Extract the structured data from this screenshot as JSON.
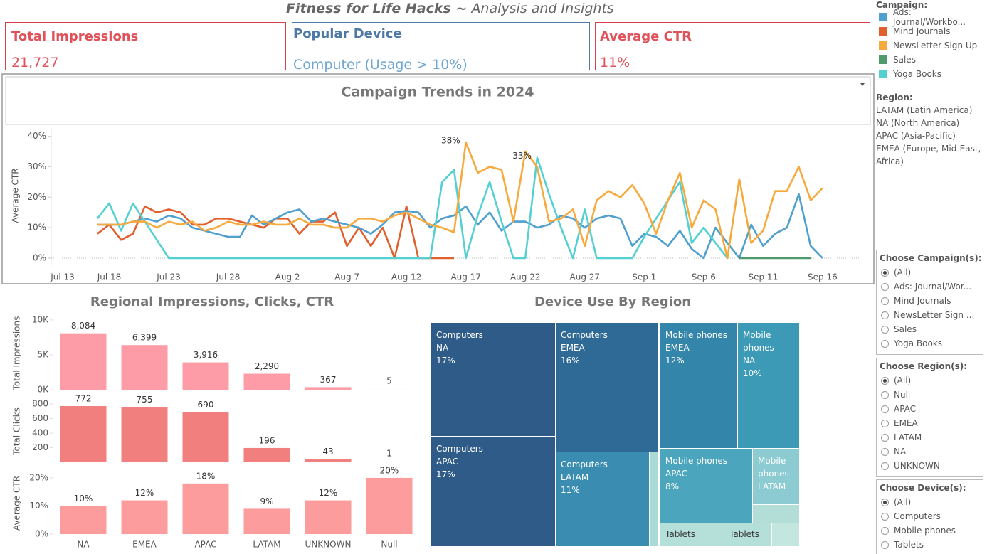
{
  "header": {
    "title_bold": "Fitness for Life Hacks ~",
    "title_rest": "Analysis and Insights"
  },
  "kpis": [
    {
      "title": "Total Impressions",
      "value": "21,727"
    },
    {
      "title": "Popular Device",
      "value": "Computer (Usage > 10%)"
    },
    {
      "title": "Average CTR",
      "value": "11%"
    }
  ],
  "region_legend": {
    "title": "Region:",
    "items": [
      "LATAM (Latin America)",
      "NA (North America)",
      "APAC (Asia-Pacific)",
      "EMEA (Europe, Mid-East, Africa)"
    ]
  },
  "filters": [
    {
      "title": "Choose Campaign(s):",
      "selected": 0,
      "options": [
        "(All)",
        "Ads: Journal/Wor...",
        "Mind Journals",
        "NewsLetter Sign ...",
        "Sales",
        "Yoga Books"
      ]
    },
    {
      "title": "Choose Region(s):",
      "selected": 0,
      "options": [
        "(All)",
        "Null",
        "APAC",
        "EMEA",
        "LATAM",
        "NA",
        "UNKNOWN"
      ]
    },
    {
      "title": "Choose Device(s):",
      "selected": 0,
      "options": [
        "(All)",
        "Computers",
        "Mobile phones",
        "Tablets"
      ]
    }
  ],
  "chart_data": [
    {
      "type": "line",
      "title": "Campaign Trends in 2024",
      "y_label": "Average CTR",
      "legend_title": "Campaign:",
      "x": [
        "Jul 17",
        "Jul 18",
        "Jul 19",
        "Jul 20",
        "Jul 21",
        "Jul 22",
        "Jul 23",
        "Jul 24",
        "Jul 25",
        "Jul 26",
        "Jul 27",
        "Jul 28",
        "Jul 29",
        "Jul 30",
        "Jul 31",
        "Aug 1",
        "Aug 2",
        "Aug 3",
        "Aug 4",
        "Aug 5",
        "Aug 6",
        "Aug 7",
        "Aug 8",
        "Aug 9",
        "Aug 10",
        "Aug 11",
        "Aug 12",
        "Aug 13",
        "Aug 14",
        "Aug 15",
        "Aug 16",
        "Aug 17",
        "Aug 18",
        "Aug 19",
        "Aug 20",
        "Aug 21",
        "Aug 22",
        "Aug 23",
        "Aug 24",
        "Aug 25",
        "Aug 26",
        "Aug 27",
        "Aug 28",
        "Aug 29",
        "Aug 30",
        "Aug 31",
        "Sep 1",
        "Sep 2",
        "Sep 3",
        "Sep 4",
        "Sep 5",
        "Sep 6",
        "Sep 7",
        "Sep 8",
        "Sep 9",
        "Sep 10",
        "Sep 11",
        "Sep 12",
        "Sep 13",
        "Sep 14",
        "Sep 15",
        "Sep 16"
      ],
      "xlim": [
        "Jul 13",
        "Sep 19"
      ],
      "xticks": [
        "Jul 13",
        "Jul 18",
        "Jul 23",
        "Jul 28",
        "Aug 2",
        "Aug 7",
        "Aug 12",
        "Aug 17",
        "Aug 22",
        "Aug 27",
        "Sep 1",
        "Sep 6",
        "Sep 11",
        "Sep 16"
      ],
      "ylim": [
        0,
        42
      ],
      "yticks": [
        {
          "value": 0,
          "label": "0%"
        },
        {
          "value": 10,
          "label": "10%"
        },
        {
          "value": 20,
          "label": "20%"
        },
        {
          "value": 30,
          "label": "30%"
        },
        {
          "value": 40,
          "label": "40%"
        }
      ],
      "series": [
        {
          "name": "Ads: Journal/Workbo...",
          "color": "#4f9fcf",
          "values": [
            11,
            11,
            11,
            12,
            13,
            12,
            14,
            13,
            10,
            9,
            8,
            7,
            7,
            14,
            11,
            13,
            15,
            16,
            12,
            13,
            12,
            11,
            10,
            8,
            11,
            15,
            15.5,
            15,
            10,
            13,
            14,
            17,
            11,
            15,
            9,
            12,
            12,
            10,
            11,
            14,
            13,
            10,
            13,
            14,
            13,
            4,
            8,
            7,
            4,
            9,
            3,
            0,
            10,
            5,
            0,
            11,
            4,
            8,
            10,
            21,
            4,
            0
          ]
        },
        {
          "name": "Mind Journals",
          "color": "#e0602e",
          "values": [
            8,
            11,
            6,
            8,
            17,
            15,
            16,
            15,
            11,
            11,
            13,
            13,
            12,
            11,
            10,
            13,
            13,
            8,
            12,
            12,
            15,
            4,
            10,
            4,
            10,
            0,
            17,
            0,
            0,
            0,
            0,
            null,
            null,
            null,
            null,
            null,
            null,
            null,
            null,
            null,
            null,
            null,
            null,
            null,
            null,
            null,
            null,
            null,
            null,
            null,
            null,
            null,
            null,
            null,
            null,
            null,
            null,
            null,
            null,
            null,
            null,
            null
          ]
        },
        {
          "name": "NewsLetter Sign Up",
          "color": "#f6a93c",
          "values": [
            11,
            11,
            11,
            12,
            12,
            10,
            12,
            11,
            12,
            9,
            10,
            12,
            11,
            11,
            12,
            11,
            11,
            13,
            11,
            11,
            10,
            10,
            13,
            13,
            12,
            14,
            15,
            13,
            11,
            10,
            8.5,
            38,
            28,
            30,
            29,
            12,
            35,
            30,
            12,
            13,
            16,
            4,
            19,
            22,
            20,
            24,
            18,
            8,
            19,
            28,
            10,
            19,
            16,
            0,
            26,
            5,
            9,
            22,
            22,
            30,
            19,
            23
          ],
          "value_labels": [
            null,
            null,
            null,
            null,
            null,
            null,
            null,
            null,
            null,
            null,
            null,
            null,
            null,
            null,
            null,
            null,
            null,
            null,
            null,
            null,
            null,
            null,
            null,
            null,
            null,
            null,
            null,
            null,
            null,
            null,
            null,
            "38%",
            null,
            null,
            null,
            null,
            null,
            null,
            null,
            null,
            null,
            null,
            null,
            null,
            null,
            null,
            null,
            null,
            null,
            null,
            null,
            null,
            null,
            null,
            null,
            null,
            null,
            null,
            null,
            null,
            null,
            null
          ]
        },
        {
          "name": "Sales",
          "color": "#4e9c6c",
          "values": [
            null,
            null,
            null,
            null,
            null,
            null,
            null,
            null,
            null,
            null,
            null,
            null,
            null,
            null,
            null,
            null,
            null,
            null,
            null,
            null,
            null,
            null,
            null,
            null,
            null,
            null,
            null,
            null,
            null,
            null,
            null,
            null,
            null,
            null,
            null,
            null,
            null,
            null,
            null,
            null,
            null,
            null,
            null,
            null,
            null,
            null,
            null,
            null,
            null,
            null,
            null,
            null,
            null,
            null,
            0,
            0,
            0,
            0,
            0,
            0,
            0,
            null
          ]
        },
        {
          "name": "Yoga Books",
          "color": "#54d0d3",
          "values": [
            13,
            18,
            9,
            18,
            12,
            6,
            0,
            0,
            0,
            0,
            0,
            0,
            0,
            0,
            0,
            0,
            0,
            0,
            0,
            0,
            0,
            0,
            0,
            0,
            0,
            0,
            0,
            0,
            0,
            25,
            29,
            0,
            14,
            25,
            12,
            0,
            0,
            33,
            21,
            10,
            0,
            16,
            0,
            0,
            0,
            0,
            7,
            13,
            19,
            25,
            5,
            10,
            5,
            0,
            null,
            null,
            null,
            null,
            null,
            null,
            null,
            null
          ],
          "value_labels": [
            null,
            null,
            null,
            null,
            null,
            null,
            null,
            null,
            null,
            null,
            null,
            null,
            null,
            null,
            null,
            null,
            null,
            null,
            null,
            null,
            null,
            null,
            null,
            null,
            null,
            null,
            null,
            null,
            null,
            null,
            null,
            null,
            null,
            null,
            null,
            null,
            null,
            "33%",
            null,
            null,
            null,
            null,
            null,
            null,
            null,
            null,
            null,
            null,
            null,
            null,
            null,
            null,
            null,
            null,
            null,
            null,
            null,
            null,
            null,
            null,
            null,
            null
          ]
        }
      ]
    },
    {
      "type": "bar",
      "title": "Regional Impressions, Clicks, CTR",
      "categories": [
        "NA",
        "EMEA",
        "APAC",
        "LATAM",
        "UNKNOWN",
        "Null"
      ],
      "panels": [
        {
          "y_label": "Total Impressions",
          "color": "#fd9ca7",
          "ylim": [
            0,
            10500
          ],
          "yticks": [
            {
              "value": 0,
              "label": "0K"
            },
            {
              "value": 5000,
              "label": "5K"
            },
            {
              "value": 10000,
              "label": "10K"
            }
          ],
          "values": [
            8084,
            6399,
            3916,
            2290,
            367,
            5
          ],
          "value_labels": [
            "8,084",
            "6,399",
            "3,916",
            "2,290",
            "367",
            "5"
          ]
        },
        {
          "y_label": "Total Clicks",
          "color": "#f07f7e",
          "ylim": [
            0,
            850
          ],
          "yticks": [
            200,
            400,
            600,
            800
          ],
          "values": [
            772,
            755,
            690,
            196,
            43,
            1
          ],
          "value_labels": [
            "772",
            "755",
            "690",
            "196",
            "43",
            "1"
          ]
        },
        {
          "y_label": "Average CTR",
          "color": "#fd9c9c",
          "ylim": [
            0,
            22
          ],
          "yticks": [
            {
              "value": 0,
              "label": "0%"
            },
            {
              "value": 10,
              "label": "10%"
            },
            {
              "value": 20,
              "label": "20%"
            }
          ],
          "values": [
            10,
            12,
            18,
            9,
            12,
            20
          ],
          "value_labels": [
            "10%",
            "12%",
            "18%",
            "9%",
            "12%",
            "20%"
          ]
        }
      ]
    },
    {
      "type": "treemap",
      "title": "Device Use By Region",
      "items": [
        {
          "device": "Computers",
          "region": "NA",
          "value": 17,
          "value_label": "17%",
          "color": "#2e5b88"
        },
        {
          "device": "Computers",
          "region": "APAC",
          "value": 17,
          "value_label": "17%",
          "color": "#2e5b88"
        },
        {
          "device": "Computers",
          "region": "EMEA",
          "value": 16,
          "value_label": "16%",
          "color": "#2f6a96"
        },
        {
          "device": "Computers",
          "region": "LATAM",
          "value": 11,
          "value_label": "11%",
          "color": "#3a8db0"
        },
        {
          "device": null,
          "region": null,
          "value": 1,
          "color": "#a9dad6"
        },
        {
          "device": "Mobile phones",
          "region": "EMEA",
          "value": 12,
          "value_label": "12%",
          "color": "#3485aa"
        },
        {
          "device": "Mobile phones",
          "region": "NA",
          "value": 10,
          "value_label": "10%",
          "color": "#3c9ab6"
        },
        {
          "device": "Mobile phones",
          "region": "APAC",
          "value": 8,
          "value_label": "8%",
          "color": "#4aa5bd"
        },
        {
          "device": "Mobile phones",
          "region": "LATAM",
          "value": 3,
          "color": "#8bcbd1"
        },
        {
          "device": null,
          "region": null,
          "value": 1,
          "color": "#b2ded7"
        },
        {
          "device": "Tablets",
          "region": null,
          "value": 2,
          "color": "#b5dfd9"
        },
        {
          "device": "Tablets",
          "region": null,
          "value": 1,
          "color": "#b5dfd9"
        },
        {
          "device": null,
          "region": null,
          "value": 0.5,
          "color": "#c3e6df"
        },
        {
          "device": null,
          "region": null,
          "value": 0.3,
          "color": "#c3e6df"
        }
      ]
    }
  ]
}
